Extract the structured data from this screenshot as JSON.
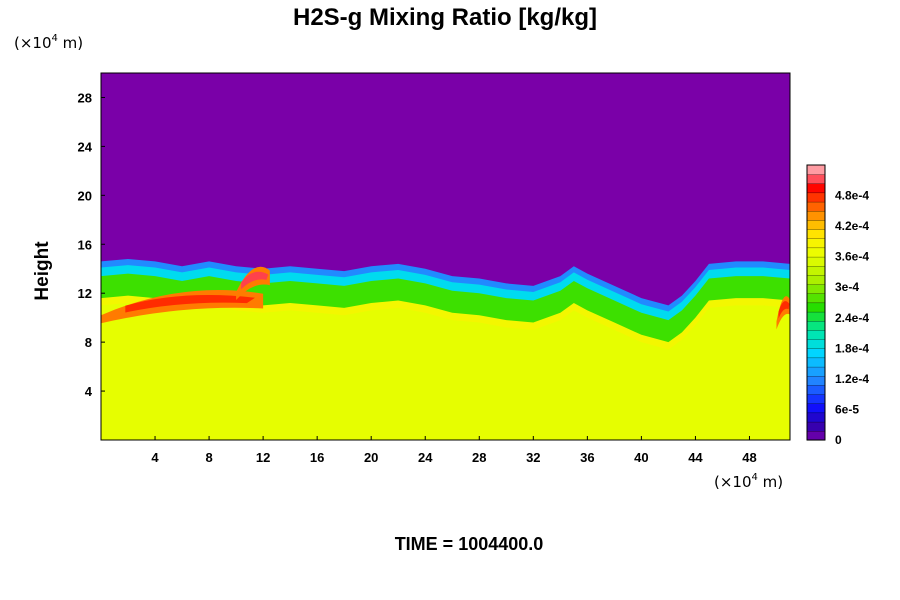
{
  "chart_data": {
    "type": "heatmap",
    "title": "H2S-g Mixing Ratio [kg/kg]",
    "ylabel": "Height",
    "xlabel": "",
    "x_unit": "(×10",
    "x_unit_exp": "4",
    "x_unit_tail": " m)",
    "y_unit": "(×10",
    "y_unit_exp": "4",
    "y_unit_tail": " m)",
    "xlim": [
      0,
      51
    ],
    "ylim": [
      0,
      30
    ],
    "x_ticks": [
      4,
      8,
      12,
      16,
      20,
      24,
      28,
      32,
      36,
      40,
      44,
      48
    ],
    "x_tick_labels": [
      "4",
      "8",
      "12",
      "16",
      "20",
      "24",
      "28",
      "32",
      "36",
      "40",
      "44",
      "48"
    ],
    "y_ticks": [
      4,
      8,
      12,
      16,
      20,
      24,
      28
    ],
    "y_tick_labels": [
      "4",
      "8",
      "12",
      "16",
      "20",
      "24",
      "28"
    ],
    "colorbar": {
      "range": [
        0,
        0.00054
      ],
      "ticks": [
        0,
        6e-05,
        0.00012,
        0.00018,
        0.00024,
        0.0003,
        0.00036,
        0.00042,
        0.00048
      ],
      "tick_labels": [
        "0",
        "6e-5",
        "1.2e-4",
        "1.8e-4",
        "2.4e-4",
        "3e-4",
        "3.6e-4",
        "4.2e-4",
        "4.8e-4"
      ]
    },
    "field": {
      "upper_value": 0,
      "lower_value": 0.00036,
      "interface_height": [
        [
          0,
          14.6
        ],
        [
          2,
          14.8
        ],
        [
          4,
          14.6
        ],
        [
          6,
          14.2
        ],
        [
          8,
          14.6
        ],
        [
          10,
          14.2
        ],
        [
          12,
          14.0
        ],
        [
          14,
          14.2
        ],
        [
          16,
          14.0
        ],
        [
          18,
          13.8
        ],
        [
          20,
          14.2
        ],
        [
          22,
          14.4
        ],
        [
          24,
          14.0
        ],
        [
          26,
          13.4
        ],
        [
          28,
          13.2
        ],
        [
          30,
          12.8
        ],
        [
          32,
          12.6
        ],
        [
          34,
          13.4
        ],
        [
          35,
          14.2
        ],
        [
          36,
          13.6
        ],
        [
          38,
          12.6
        ],
        [
          40,
          11.6
        ],
        [
          42,
          11.0
        ],
        [
          43,
          11.8
        ],
        [
          44,
          13.0
        ],
        [
          45,
          14.4
        ],
        [
          47,
          14.6
        ],
        [
          49,
          14.6
        ],
        [
          51,
          14.4
        ]
      ],
      "band_thickness": 3.0,
      "high_zones": [
        {
          "x": [
            0,
            12
          ],
          "y_center": 11.3,
          "value": 0.00048
        },
        {
          "x": [
            10,
            12.5
          ],
          "y_center": 13.2,
          "value": 0.00051
        },
        {
          "x": [
            50,
            51
          ],
          "y_center": 10.8,
          "value": 0.00048
        }
      ]
    }
  },
  "footer": {
    "time_label": "TIME = 1004400.0"
  }
}
